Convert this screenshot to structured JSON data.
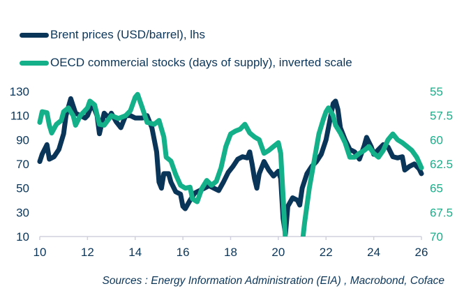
{
  "chart_data": {
    "type": "line",
    "colors": {
      "brent": "#0b3558",
      "stocks": "#14b08a",
      "axis": "#d0d0de"
    },
    "legend_placement": "top-left",
    "grid": false,
    "x_ticks": [
      "10",
      "12",
      "14",
      "16",
      "18",
      "20",
      "22",
      "24",
      "26"
    ],
    "xlim": [
      10,
      26
    ],
    "y_left": {
      "ticks": [
        "130",
        "110",
        "90",
        "70",
        "50",
        "30",
        "10"
      ],
      "range": [
        10,
        130
      ]
    },
    "y_right": {
      "ticks": [
        "55",
        "57.5",
        "60",
        "62.5",
        "65",
        "67.5",
        "70"
      ],
      "range": [
        55,
        70
      ],
      "inverted": true
    },
    "series": [
      {
        "name": "Brent prices (USD/barrel), lhs",
        "axis": "left",
        "x": [
          10.0,
          10.1,
          10.3,
          10.4,
          10.6,
          10.8,
          11.0,
          11.1,
          11.3,
          11.5,
          11.7,
          11.9,
          12.0,
          12.2,
          12.4,
          12.5,
          12.7,
          12.9,
          13.0,
          13.2,
          13.4,
          13.6,
          13.8,
          14.0,
          14.3,
          14.5,
          14.7,
          14.9,
          15.0,
          15.1,
          15.2,
          15.4,
          15.5,
          15.7,
          15.9,
          16.0,
          16.1,
          16.3,
          16.5,
          16.7,
          16.9,
          17.1,
          17.3,
          17.5,
          17.7,
          17.9,
          18.1,
          18.3,
          18.5,
          18.7,
          18.8,
          18.9,
          19.0,
          19.1,
          19.2,
          19.4,
          19.6,
          19.8,
          20.0,
          20.1,
          20.2,
          20.3,
          20.4,
          20.6,
          20.8,
          20.9,
          21.0,
          21.2,
          21.4,
          21.6,
          21.8,
          22.0,
          22.1,
          22.2,
          22.3,
          22.4,
          22.5,
          22.6,
          22.8,
          23.0,
          23.2,
          23.4,
          23.6,
          23.7,
          23.9,
          24.0,
          24.2,
          24.4,
          24.6,
          24.8,
          25.0,
          25.2,
          25.3,
          25.5,
          25.7,
          25.9,
          26.0
        ],
        "values": [
          72,
          78,
          86,
          74,
          76,
          82,
          95,
          110,
          124,
          112,
          110,
          108,
          110,
          120,
          110,
          95,
          112,
          108,
          112,
          105,
          100,
          110,
          110,
          108,
          108,
          110,
          100,
          80,
          55,
          50,
          62,
          62,
          55,
          47,
          45,
          35,
          33,
          40,
          46,
          48,
          50,
          52,
          50,
          48,
          55,
          63,
          68,
          74,
          76,
          75,
          80,
          70,
          58,
          50,
          62,
          72,
          65,
          60,
          64,
          58,
          25,
          12,
          35,
          42,
          40,
          36,
          50,
          62,
          68,
          72,
          78,
          90,
          100,
          110,
          120,
          122,
          115,
          100,
          90,
          82,
          80,
          74,
          85,
          92,
          84,
          78,
          82,
          86,
          84,
          76,
          75,
          76,
          65,
          68,
          70,
          66,
          62
        ]
      },
      {
        "name": "OECD commercial stocks (days of supply), inverted scale",
        "axis": "right",
        "x": [
          10.0,
          10.1,
          10.3,
          10.4,
          10.5,
          10.7,
          10.9,
          11.0,
          11.2,
          11.4,
          11.5,
          11.7,
          12.0,
          12.1,
          12.3,
          12.5,
          12.7,
          13.0,
          13.3,
          13.6,
          13.8,
          14.0,
          14.1,
          14.3,
          14.5,
          14.8,
          15.0,
          15.2,
          15.3,
          15.5,
          15.7,
          15.9,
          16.1,
          16.3,
          16.4,
          16.6,
          16.8,
          17.0,
          17.2,
          17.4,
          17.6,
          17.8,
          18.0,
          18.2,
          18.4,
          18.6,
          18.8,
          19.0,
          19.2,
          19.4,
          19.6,
          19.8,
          20.0,
          20.1,
          20.2,
          20.3,
          21.0,
          21.1,
          21.3,
          21.5,
          21.7,
          21.9,
          22.0,
          22.1,
          22.3,
          22.4,
          22.6,
          22.8,
          23.0,
          23.2,
          23.4,
          23.6,
          23.8,
          24.0,
          24.2,
          24.4,
          24.6,
          24.8,
          25.0,
          25.2,
          25.4,
          25.6,
          25.8,
          26.0
        ],
        "values": [
          58.2,
          57.1,
          57.2,
          58.5,
          59.3,
          58.4,
          58.0,
          57.1,
          56.7,
          57.5,
          58.5,
          57.5,
          56.7,
          56.0,
          56.4,
          58.4,
          58.5,
          57.5,
          57.8,
          57.5,
          57.0,
          55.6,
          55.3,
          56.7,
          58.2,
          58.4,
          58.0,
          59.7,
          61.8,
          62.2,
          63.6,
          64.7,
          65.0,
          64.9,
          66.1,
          66.4,
          65.0,
          64.2,
          64.7,
          64.3,
          62.9,
          60.7,
          59.4,
          59.1,
          58.9,
          58.4,
          59.3,
          59.7,
          60.0,
          61.4,
          61.1,
          60.7,
          60.3,
          61.4,
          65.8,
          70.4,
          70.8,
          68.6,
          65.0,
          62.2,
          59.4,
          57.8,
          57.1,
          56.7,
          57.5,
          58.5,
          59.3,
          60.3,
          61.8,
          61.8,
          61.4,
          61.1,
          60.7,
          61.4,
          61.8,
          61.1,
          60.0,
          59.4,
          60.0,
          60.3,
          60.7,
          61.1,
          61.8,
          62.9
        ]
      }
    ]
  },
  "legend": {
    "brent": "Brent prices (USD/barrel), lhs",
    "stocks": "OECD commercial stocks (days of supply), inverted scale"
  },
  "source": "Sources : Energy Information Administration (EIA) , Macrobond, Coface"
}
